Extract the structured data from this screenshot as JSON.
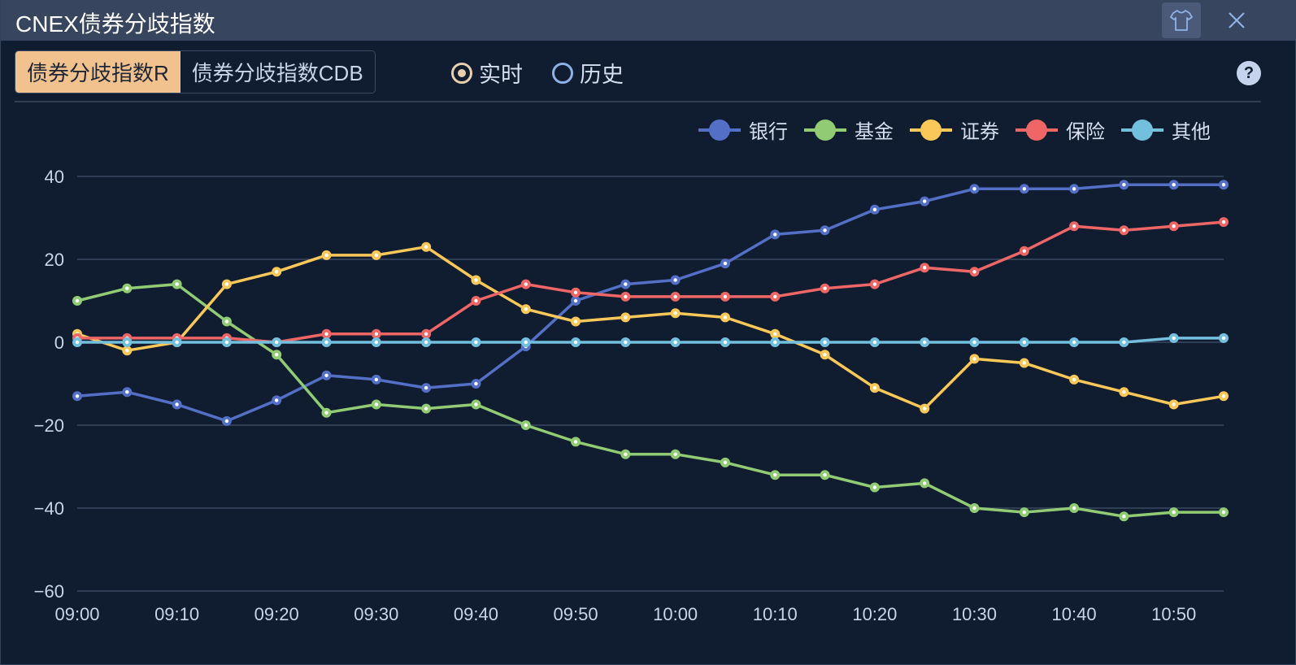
{
  "window": {
    "title": "CNEX债券分歧指数",
    "skin_icon": "tshirt-icon",
    "close_label": "X"
  },
  "tabs": [
    {
      "label": "债券分歧指数R",
      "active": true
    },
    {
      "label": "债券分歧指数CDB",
      "active": false
    }
  ],
  "mode": {
    "options": [
      {
        "label": "实时",
        "selected": true
      },
      {
        "label": "历史",
        "selected": false
      }
    ]
  },
  "help_label": "?",
  "chart_data": {
    "type": "line",
    "title": "",
    "xlabel": "",
    "ylabel": "",
    "ylim": [
      -60,
      40
    ],
    "yticks": [
      40,
      20,
      0,
      -20,
      -40,
      -60
    ],
    "grid": true,
    "legend_position": "top-right",
    "x": [
      "09:00",
      "09:05",
      "09:10",
      "09:15",
      "09:20",
      "09:25",
      "09:30",
      "09:35",
      "09:40",
      "09:45",
      "09:50",
      "09:55",
      "10:00",
      "10:05",
      "10:10",
      "10:15",
      "10:20",
      "10:25",
      "10:30",
      "10:35",
      "10:40",
      "10:45",
      "10:50",
      "10:55"
    ],
    "xtick_labels": [
      "09:00",
      "09:10",
      "09:20",
      "09:30",
      "09:40",
      "09:50",
      "10:00",
      "10:10",
      "10:20",
      "10:30",
      "10:40",
      "10:50"
    ],
    "series": [
      {
        "name": "银行",
        "color": "#5470c6",
        "values": [
          -13,
          -12,
          -15,
          -19,
          -14,
          -8,
          -9,
          -11,
          -10,
          -1,
          10,
          14,
          15,
          19,
          26,
          27,
          32,
          34,
          37,
          37,
          37,
          38,
          38,
          38
        ]
      },
      {
        "name": "基金",
        "color": "#91cc75",
        "values": [
          10,
          13,
          14,
          5,
          -3,
          -17,
          -15,
          -16,
          -15,
          -20,
          -24,
          -27,
          -27,
          -29,
          -32,
          -32,
          -35,
          -34,
          -40,
          -41,
          -40,
          -42,
          -41,
          -41
        ]
      },
      {
        "name": "证券",
        "color": "#fac858",
        "values": [
          2,
          -2,
          0,
          14,
          17,
          21,
          21,
          23,
          15,
          8,
          5,
          6,
          7,
          6,
          2,
          -3,
          -11,
          -16,
          -4,
          -5,
          -9,
          -12,
          -15,
          -13
        ]
      },
      {
        "name": "保险",
        "color": "#ee6666",
        "values": [
          1,
          1,
          1,
          1,
          0,
          2,
          2,
          2,
          10,
          14,
          12,
          11,
          11,
          11,
          11,
          13,
          14,
          18,
          17,
          22,
          28,
          27,
          28,
          29
        ]
      },
      {
        "name": "其他",
        "color": "#73c0de",
        "values": [
          0,
          0,
          0,
          0,
          0,
          0,
          0,
          0,
          0,
          0,
          0,
          0,
          0,
          0,
          0,
          0,
          0,
          0,
          0,
          0,
          0,
          0,
          1,
          1
        ]
      }
    ]
  },
  "colors": {
    "titlebar": "#37465e",
    "background": "#101c30",
    "active_tab": "#f1c28e",
    "grid": "#2f3d55"
  }
}
